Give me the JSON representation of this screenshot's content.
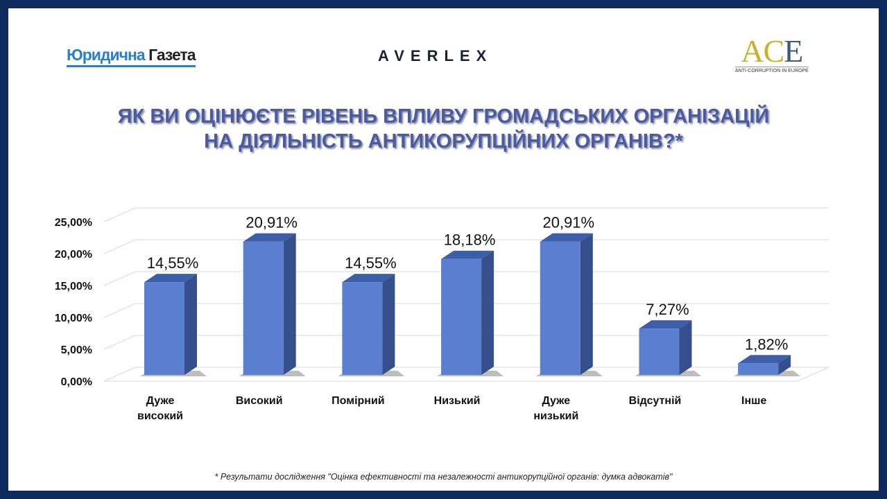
{
  "logos": {
    "left_a": "Юридична",
    "left_b": "Газета",
    "center": "AVERLEX",
    "right": "ACE",
    "right_a": "AC",
    "right_e": "E",
    "right_sub": "ANTI-CORRUPTION IN EUROPE"
  },
  "footnote": "* Результати дослідження \"Оцінка ефективності та незалежності антикорупційної органів: думка адвокатів\"",
  "chart_data": {
    "type": "bar",
    "title_lines": [
      "ЯК ВИ ОЦІНЮЄТЕ РІВЕНЬ ВПЛИВУ ГРОМАДСЬКИХ ОРГАНІЗАЦІЙ",
      "НА ДІЯЛЬНІСТЬ АНТИКОРУПЦІЙНИХ ОРГАНІВ?*"
    ],
    "categories": [
      [
        "Дуже",
        "високий"
      ],
      [
        "Високий"
      ],
      [
        "Помірний"
      ],
      [
        "Низький"
      ],
      [
        "Дуже",
        "низький"
      ],
      [
        "Відсутній"
      ],
      [
        "Інше"
      ]
    ],
    "values": [
      14.55,
      20.91,
      14.55,
      18.18,
      20.91,
      7.27,
      1.82
    ],
    "data_labels": [
      "14,55%",
      "20,91%",
      "14,55%",
      "18,18%",
      "20,91%",
      "7,27%",
      "1,82%"
    ],
    "yticks": [
      "0,00%",
      "5,00%",
      "10,00%",
      "15,00%",
      "20,00%",
      "25,00%"
    ],
    "ylim": [
      0,
      25
    ],
    "grid": true,
    "color": "#5a7fd0"
  }
}
